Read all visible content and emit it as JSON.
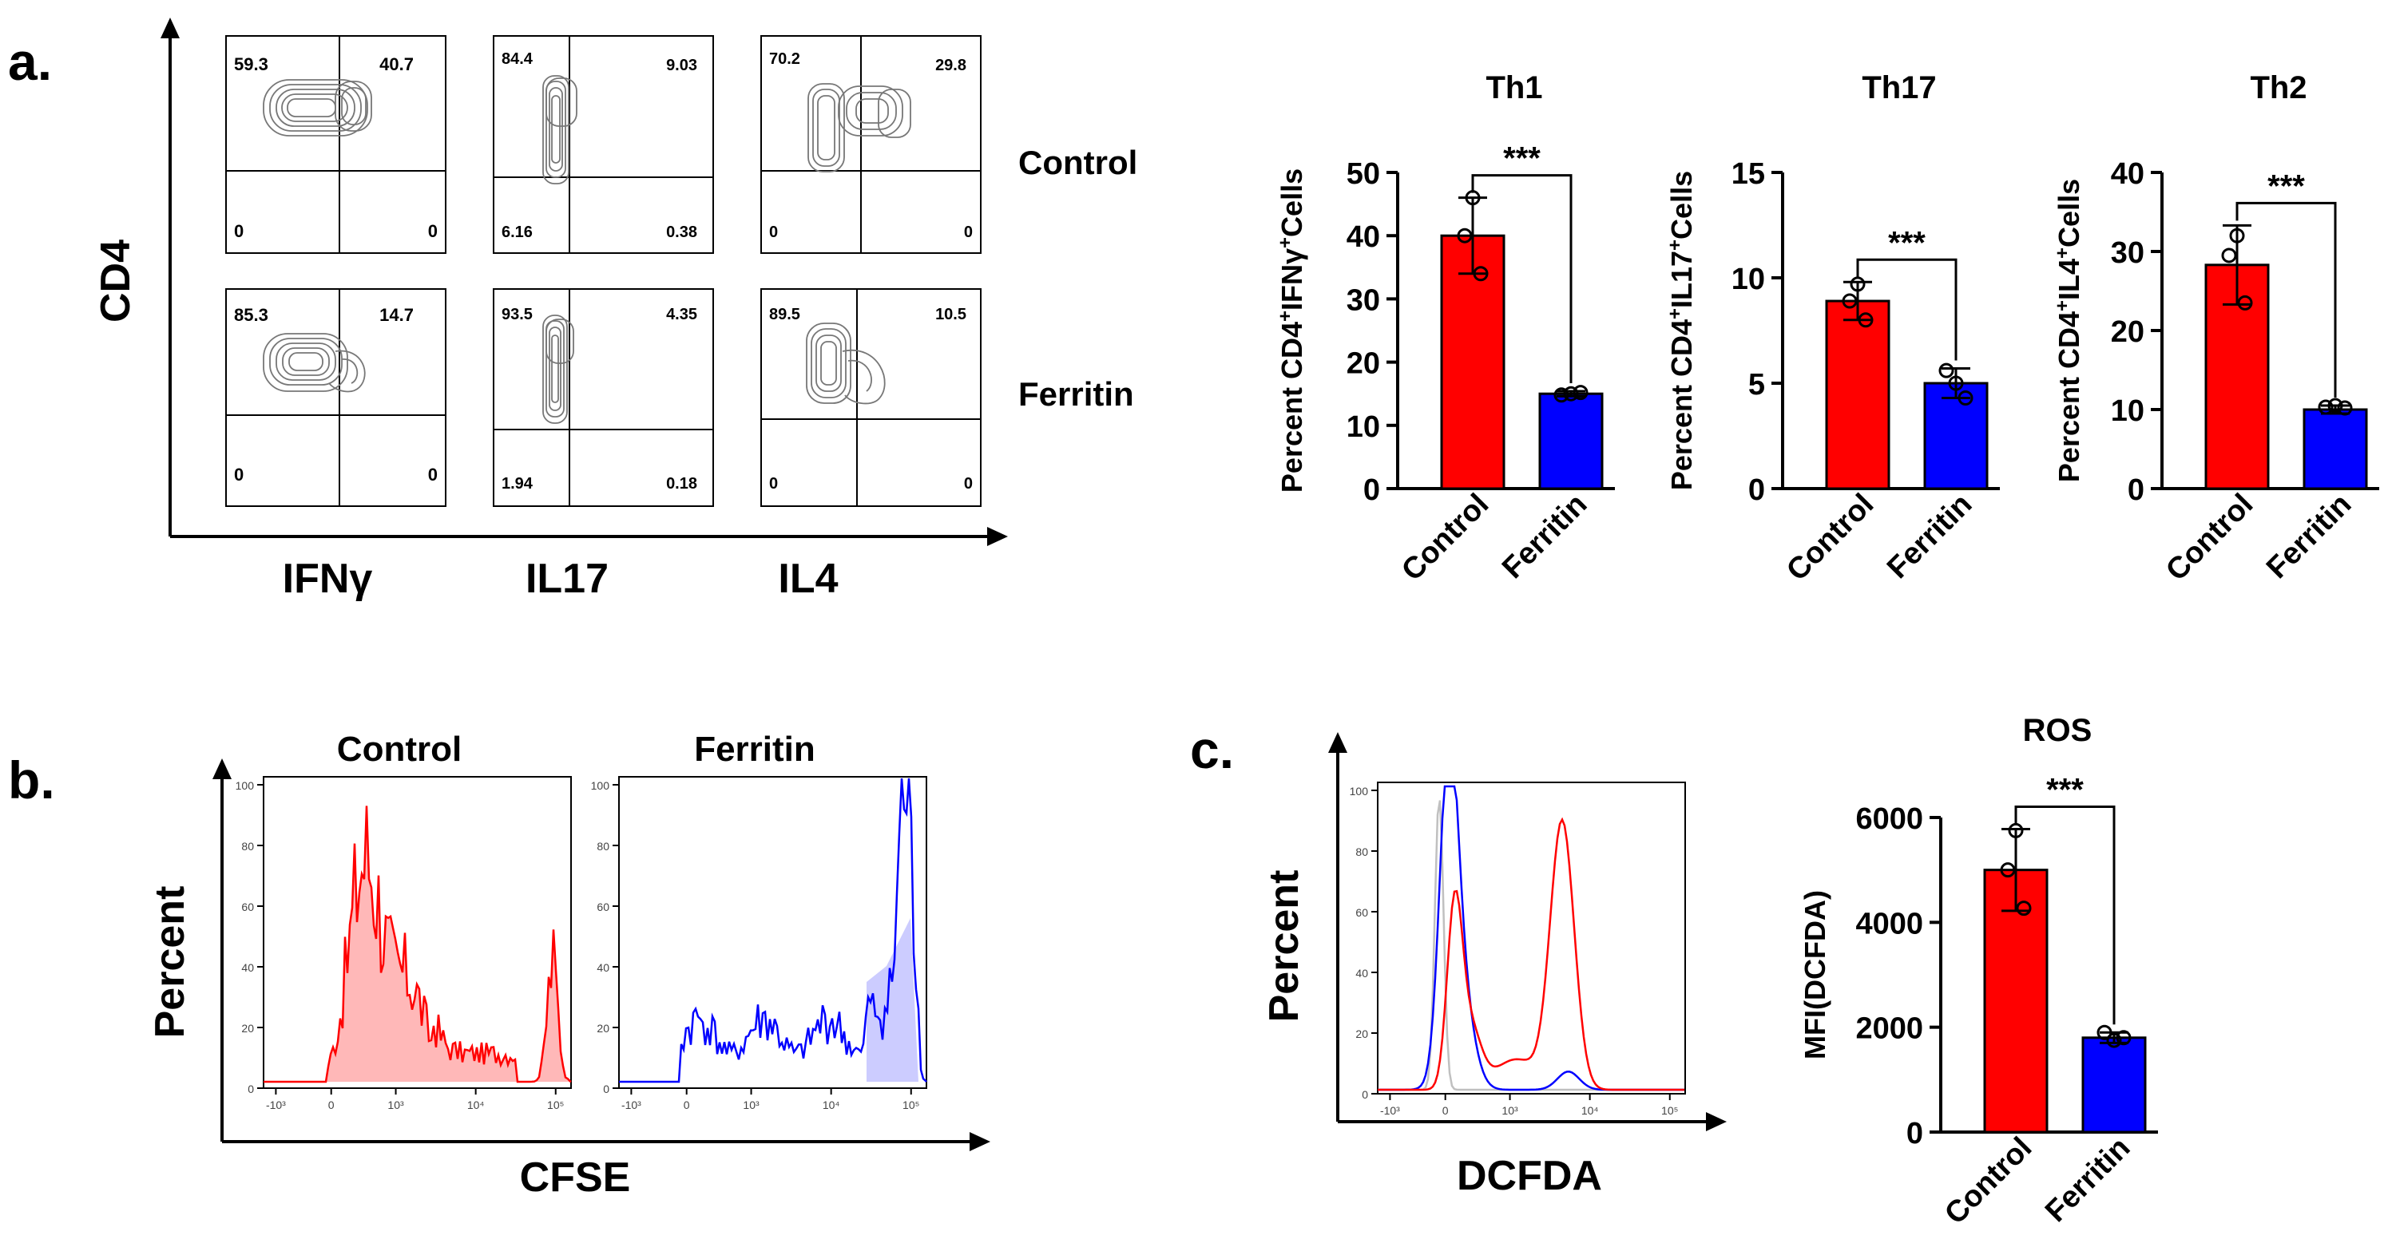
{
  "panel_labels": {
    "a": "a.",
    "b": "b.",
    "c": "c."
  },
  "colors": {
    "control": "#ff0000",
    "ferritin": "#0000ff",
    "unstained": "#c0c0c0",
    "axis": "#000000"
  },
  "flow_a": {
    "y_label": "CD4",
    "x_labels": [
      "IFNγ",
      "IL17",
      "IL4"
    ],
    "row_labels": [
      "Control",
      "Ferritin"
    ],
    "grid": [
      [
        {
          "ul": "59.3",
          "ur": "40.7",
          "ll": "0",
          "lr": "0"
        },
        {
          "ul": "84.4",
          "ur": "9.03",
          "ll": "6.16",
          "lr": "0.38"
        },
        {
          "ul": "70.2",
          "ur": "29.8",
          "ll": "0",
          "lr": "0"
        }
      ],
      [
        {
          "ul": "85.3",
          "ur": "14.7",
          "ll": "0",
          "lr": "0"
        },
        {
          "ul": "93.5",
          "ur": "4.35",
          "ll": "1.94",
          "lr": "0.18"
        },
        {
          "ul": "89.5",
          "ur": "10.5",
          "ll": "0",
          "lr": "0"
        }
      ]
    ]
  },
  "histo_b": {
    "titles": [
      "Control",
      "Ferritin"
    ],
    "y_label": "Percent",
    "x_label": "CFSE",
    "y_ticks": [
      "0",
      "20",
      "40",
      "60",
      "80",
      "100"
    ],
    "x_ticks": [
      "-10³",
      "0",
      "10³",
      "10⁴",
      "10⁵"
    ]
  },
  "histo_c": {
    "y_label": "Percent",
    "x_label": "DCFDA",
    "y_ticks": [
      "0",
      "20",
      "40",
      "60",
      "80",
      "100"
    ],
    "x_ticks": [
      "-10³",
      "0",
      "10³",
      "10⁴",
      "10⁵"
    ]
  },
  "significance": "***",
  "chart_data": [
    {
      "type": "bar",
      "title": "Th1",
      "categories": [
        "Control",
        "Ferritin"
      ],
      "values": [
        40,
        15
      ],
      "errors": [
        6,
        0.4
      ],
      "points": [
        [
          46,
          40,
          34
        ],
        [
          14.8,
          15,
          15.2
        ]
      ],
      "ylabel_parts": [
        "Percent CD4",
        "+",
        "IFNγ",
        "+",
        "Cells"
      ],
      "ylim": [
        0,
        50
      ],
      "yticks": [
        0,
        10,
        20,
        30,
        40,
        50
      ],
      "significance": "***"
    },
    {
      "type": "bar",
      "title": "Th17",
      "categories": [
        "Control",
        "Ferritin"
      ],
      "values": [
        8.9,
        5.0
      ],
      "errors": [
        0.9,
        0.7
      ],
      "points": [
        [
          9.7,
          8.9,
          8.0
        ],
        [
          5.6,
          5.0,
          4.3
        ]
      ],
      "ylabel_parts": [
        "Percent CD4",
        "+",
        "IL17",
        "+",
        "Cells"
      ],
      "ylim": [
        0,
        15
      ],
      "yticks": [
        0,
        5,
        10,
        15
      ],
      "significance": "***"
    },
    {
      "type": "bar",
      "title": "Th2",
      "categories": [
        "Control",
        "Ferritin"
      ],
      "values": [
        28.3,
        10.0
      ],
      "errors": [
        5,
        0.5
      ],
      "points": [
        [
          32,
          29.5,
          23.5
        ],
        [
          10.3,
          10.5,
          10.2
        ]
      ],
      "ylabel_parts": [
        "Percent CD4",
        "+",
        "IL4",
        "+",
        "Cells"
      ],
      "ylim": [
        0,
        40
      ],
      "yticks": [
        0,
        10,
        20,
        30,
        40
      ],
      "significance": "***"
    },
    {
      "type": "bar",
      "title": "ROS",
      "categories": [
        "Control",
        "Ferritin"
      ],
      "values": [
        5000,
        1800
      ],
      "errors": [
        780,
        100
      ],
      "points": [
        [
          5750,
          5000,
          4270
        ],
        [
          1900,
          1750,
          1800
        ]
      ],
      "ylabel_parts": [
        "MFI(DCFDA)"
      ],
      "ylim": [
        0,
        6000
      ],
      "yticks": [
        0,
        2000,
        4000,
        6000
      ],
      "significance": "***"
    }
  ]
}
